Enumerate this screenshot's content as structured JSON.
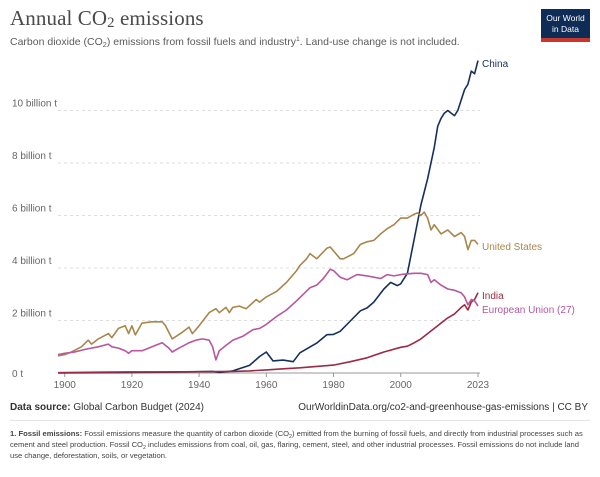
{
  "header": {
    "title_main": "Annual CO",
    "title_sub": "2",
    "title_tail": " emissions",
    "subtitle_a": "Carbon dioxide (CO",
    "subtitle_sub": "2",
    "subtitle_b": ") emissions from fossil fuels and industry",
    "subtitle_sup": "1",
    "subtitle_c": ". Land-use change is not included."
  },
  "logo": {
    "line1": "Our World",
    "line2": "in Data"
  },
  "footer": {
    "source_label": "Data source:",
    "source_value": " Global Carbon Budget (2024)",
    "url_text": "OurWorldinData.org/co2-and-greenhouse-gas-emissions | CC BY",
    "note_label": "1. Fossil emissions:",
    "note_a": " Fossil emissions measure the quantity of carbon dioxide (CO",
    "note_sub1": "2",
    "note_b": ") emitted from the burning of fossil fuels, and directly from industrial processes such as cement and steel production. Fossil CO",
    "note_sub2": "2",
    "note_c": " includes emissions from coal, oil, gas, flaring, cement, steel, and other industrial processes. Fossil emissions do not include land use change, deforestation, soils, or vegetation."
  },
  "colors": {
    "china": "#16305d",
    "united_states": "#a8864c",
    "india": "#9b2a45",
    "eu27": "#b6579f"
  },
  "chart_data": {
    "type": "line",
    "xlabel": "",
    "ylabel": "",
    "xlim": [
      1898,
      2023
    ],
    "ylim": [
      0,
      12
    ],
    "x_ticks": [
      {
        "value": 1900,
        "label": "1900"
      },
      {
        "value": 1920,
        "label": "1920"
      },
      {
        "value": 1940,
        "label": "1940"
      },
      {
        "value": 1960,
        "label": "1960"
      },
      {
        "value": 1980,
        "label": "1980"
      },
      {
        "value": 2000,
        "label": "2000"
      },
      {
        "value": 2023,
        "label": "2023"
      }
    ],
    "y_ticks": [
      {
        "value": 0,
        "label": "0 t"
      },
      {
        "value": 2,
        "label": "2 billion t"
      },
      {
        "value": 4,
        "label": "4 billion t"
      },
      {
        "value": 6,
        "label": "6 billion t"
      },
      {
        "value": 8,
        "label": "8 billion t"
      },
      {
        "value": 10,
        "label": "10 billion t"
      }
    ],
    "grid": "horizontal dashed",
    "legend": "labels at line ends",
    "series": [
      {
        "name": "China",
        "color": "#16305d",
        "points": [
          [
            1898,
            0.0
          ],
          [
            1910,
            0.01
          ],
          [
            1920,
            0.02
          ],
          [
            1930,
            0.03
          ],
          [
            1940,
            0.05
          ],
          [
            1944,
            0.06
          ],
          [
            1946,
            0.02
          ],
          [
            1950,
            0.08
          ],
          [
            1955,
            0.29
          ],
          [
            1958,
            0.63
          ],
          [
            1960,
            0.8
          ],
          [
            1962,
            0.46
          ],
          [
            1965,
            0.49
          ],
          [
            1968,
            0.43
          ],
          [
            1970,
            0.77
          ],
          [
            1972,
            0.92
          ],
          [
            1975,
            1.14
          ],
          [
            1978,
            1.46
          ],
          [
            1980,
            1.47
          ],
          [
            1982,
            1.59
          ],
          [
            1985,
            1.98
          ],
          [
            1988,
            2.37
          ],
          [
            1990,
            2.48
          ],
          [
            1992,
            2.7
          ],
          [
            1995,
            3.2
          ],
          [
            1997,
            3.45
          ],
          [
            1999,
            3.33
          ],
          [
            2000,
            3.4
          ],
          [
            2002,
            3.8
          ],
          [
            2004,
            5.1
          ],
          [
            2006,
            6.4
          ],
          [
            2008,
            7.4
          ],
          [
            2010,
            8.6
          ],
          [
            2011,
            9.4
          ],
          [
            2012,
            9.7
          ],
          [
            2013,
            9.9
          ],
          [
            2014,
            10.0
          ],
          [
            2015,
            9.9
          ],
          [
            2016,
            9.8
          ],
          [
            2017,
            10.0
          ],
          [
            2018,
            10.4
          ],
          [
            2019,
            10.8
          ],
          [
            2020,
            11.0
          ],
          [
            2021,
            11.5
          ],
          [
            2022,
            11.4
          ],
          [
            2023,
            11.9
          ]
        ]
      },
      {
        "name": "United States",
        "color": "#a8864c",
        "points": [
          [
            1898,
            0.65
          ],
          [
            1900,
            0.7
          ],
          [
            1902,
            0.8
          ],
          [
            1905,
            1.0
          ],
          [
            1907,
            1.25
          ],
          [
            1908,
            1.1
          ],
          [
            1910,
            1.3
          ],
          [
            1913,
            1.5
          ],
          [
            1914,
            1.35
          ],
          [
            1916,
            1.7
          ],
          [
            1918,
            1.8
          ],
          [
            1919,
            1.5
          ],
          [
            1920,
            1.8
          ],
          [
            1921,
            1.45
          ],
          [
            1923,
            1.9
          ],
          [
            1926,
            1.95
          ],
          [
            1929,
            1.95
          ],
          [
            1930,
            1.8
          ],
          [
            1932,
            1.3
          ],
          [
            1935,
            1.55
          ],
          [
            1937,
            1.75
          ],
          [
            1938,
            1.5
          ],
          [
            1940,
            1.8
          ],
          [
            1943,
            2.3
          ],
          [
            1945,
            2.45
          ],
          [
            1946,
            2.3
          ],
          [
            1948,
            2.5
          ],
          [
            1949,
            2.3
          ],
          [
            1950,
            2.5
          ],
          [
            1952,
            2.55
          ],
          [
            1954,
            2.45
          ],
          [
            1957,
            2.8
          ],
          [
            1958,
            2.7
          ],
          [
            1960,
            2.9
          ],
          [
            1963,
            3.1
          ],
          [
            1966,
            3.45
          ],
          [
            1969,
            3.9
          ],
          [
            1970,
            4.1
          ],
          [
            1972,
            4.35
          ],
          [
            1973,
            4.55
          ],
          [
            1975,
            4.35
          ],
          [
            1978,
            4.75
          ],
          [
            1979,
            4.8
          ],
          [
            1980,
            4.65
          ],
          [
            1982,
            4.35
          ],
          [
            1983,
            4.35
          ],
          [
            1986,
            4.55
          ],
          [
            1988,
            4.9
          ],
          [
            1990,
            5.0
          ],
          [
            1992,
            5.05
          ],
          [
            1994,
            5.3
          ],
          [
            1996,
            5.5
          ],
          [
            1998,
            5.65
          ],
          [
            2000,
            5.9
          ],
          [
            2002,
            5.9
          ],
          [
            2004,
            6.05
          ],
          [
            2005,
            6.1
          ],
          [
            2006,
            6.0
          ],
          [
            2007,
            6.13
          ],
          [
            2008,
            5.9
          ],
          [
            2009,
            5.45
          ],
          [
            2010,
            5.65
          ],
          [
            2012,
            5.3
          ],
          [
            2014,
            5.45
          ],
          [
            2016,
            5.2
          ],
          [
            2018,
            5.35
          ],
          [
            2019,
            5.2
          ],
          [
            2020,
            4.7
          ],
          [
            2021,
            5.05
          ],
          [
            2022,
            5.05
          ],
          [
            2023,
            4.9
          ]
        ]
      },
      {
        "name": "India",
        "color": "#9b2a45",
        "points": [
          [
            1898,
            0.01
          ],
          [
            1910,
            0.03
          ],
          [
            1920,
            0.04
          ],
          [
            1930,
            0.04
          ],
          [
            1940,
            0.05
          ],
          [
            1950,
            0.06
          ],
          [
            1955,
            0.08
          ],
          [
            1960,
            0.12
          ],
          [
            1965,
            0.16
          ],
          [
            1970,
            0.2
          ],
          [
            1975,
            0.25
          ],
          [
            1980,
            0.3
          ],
          [
            1985,
            0.43
          ],
          [
            1990,
            0.58
          ],
          [
            1995,
            0.8
          ],
          [
            2000,
            0.98
          ],
          [
            2002,
            1.02
          ],
          [
            2004,
            1.15
          ],
          [
            2006,
            1.3
          ],
          [
            2008,
            1.5
          ],
          [
            2010,
            1.7
          ],
          [
            2012,
            1.9
          ],
          [
            2014,
            2.1
          ],
          [
            2016,
            2.25
          ],
          [
            2018,
            2.5
          ],
          [
            2019,
            2.6
          ],
          [
            2020,
            2.4
          ],
          [
            2021,
            2.7
          ],
          [
            2022,
            2.8
          ],
          [
            2023,
            3.06
          ]
        ]
      },
      {
        "name": "European Union (27)",
        "color": "#b6579f",
        "points": [
          [
            1898,
            0.7
          ],
          [
            1900,
            0.75
          ],
          [
            1903,
            0.8
          ],
          [
            1906,
            0.9
          ],
          [
            1910,
            1.0
          ],
          [
            1913,
            1.1
          ],
          [
            1914,
            1.0
          ],
          [
            1916,
            0.95
          ],
          [
            1918,
            0.85
          ],
          [
            1919,
            0.75
          ],
          [
            1920,
            0.85
          ],
          [
            1923,
            0.85
          ],
          [
            1925,
            0.95
          ],
          [
            1927,
            1.05
          ],
          [
            1929,
            1.15
          ],
          [
            1931,
            0.95
          ],
          [
            1932,
            0.8
          ],
          [
            1934,
            0.95
          ],
          [
            1937,
            1.15
          ],
          [
            1939,
            1.25
          ],
          [
            1941,
            1.3
          ],
          [
            1943,
            1.25
          ],
          [
            1944,
            1.0
          ],
          [
            1945,
            0.5
          ],
          [
            1946,
            0.85
          ],
          [
            1948,
            1.05
          ],
          [
            1950,
            1.25
          ],
          [
            1953,
            1.4
          ],
          [
            1956,
            1.65
          ],
          [
            1958,
            1.7
          ],
          [
            1960,
            1.85
          ],
          [
            1963,
            2.15
          ],
          [
            1966,
            2.4
          ],
          [
            1969,
            2.75
          ],
          [
            1971,
            3.0
          ],
          [
            1973,
            3.25
          ],
          [
            1975,
            3.35
          ],
          [
            1977,
            3.6
          ],
          [
            1979,
            3.95
          ],
          [
            1980,
            3.9
          ],
          [
            1982,
            3.65
          ],
          [
            1984,
            3.55
          ],
          [
            1987,
            3.75
          ],
          [
            1990,
            3.7
          ],
          [
            1992,
            3.65
          ],
          [
            1994,
            3.6
          ],
          [
            1996,
            3.75
          ],
          [
            1998,
            3.7
          ],
          [
            2000,
            3.75
          ],
          [
            2002,
            3.78
          ],
          [
            2004,
            3.8
          ],
          [
            2006,
            3.8
          ],
          [
            2008,
            3.75
          ],
          [
            2009,
            3.45
          ],
          [
            2010,
            3.55
          ],
          [
            2012,
            3.35
          ],
          [
            2014,
            3.2
          ],
          [
            2016,
            3.15
          ],
          [
            2018,
            3.05
          ],
          [
            2019,
            2.9
          ],
          [
            2020,
            2.6
          ],
          [
            2021,
            2.8
          ],
          [
            2022,
            2.75
          ],
          [
            2023,
            2.55
          ]
        ]
      }
    ]
  }
}
